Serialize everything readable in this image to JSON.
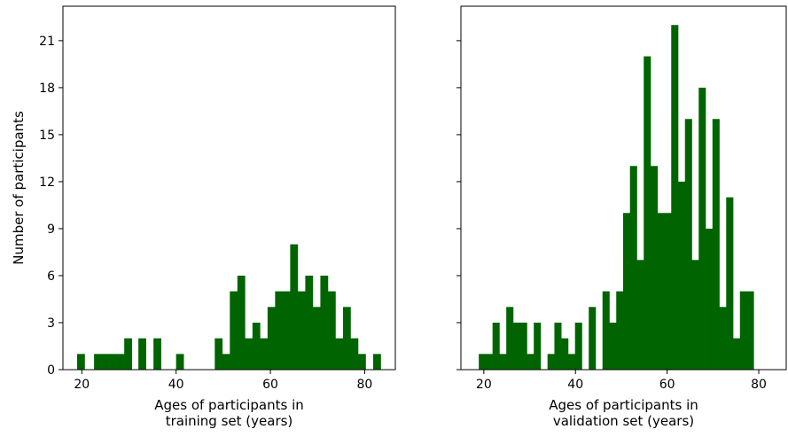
{
  "chart_data": [
    {
      "type": "bar",
      "title": "",
      "xlabel": [
        "Ages of participants in",
        "training set (years)"
      ],
      "ylabel": "Number of participants",
      "xlim": [
        16,
        86.5
      ],
      "ylim": [
        0,
        23.2
      ],
      "xticks": [
        20,
        40,
        60,
        80
      ],
      "yticks": [
        0,
        3,
        6,
        9,
        12,
        15,
        18,
        21
      ],
      "bar_color": "#006400",
      "bins": [
        {
          "x0": 19.0,
          "x1": 20.6,
          "value": 1
        },
        {
          "x0": 22.6,
          "x1": 24.2,
          "value": 1
        },
        {
          "x0": 24.2,
          "x1": 25.8,
          "value": 1
        },
        {
          "x0": 25.8,
          "x1": 27.4,
          "value": 1
        },
        {
          "x0": 27.4,
          "x1": 29.0,
          "value": 1
        },
        {
          "x0": 29.0,
          "x1": 30.6,
          "value": 2
        },
        {
          "x0": 32.0,
          "x1": 33.6,
          "value": 2
        },
        {
          "x0": 35.2,
          "x1": 36.8,
          "value": 2
        },
        {
          "x0": 40.0,
          "x1": 41.6,
          "value": 1
        },
        {
          "x0": 48.2,
          "x1": 49.8,
          "value": 2
        },
        {
          "x0": 49.8,
          "x1": 51.4,
          "value": 1
        },
        {
          "x0": 51.4,
          "x1": 53.0,
          "value": 5
        },
        {
          "x0": 53.0,
          "x1": 54.6,
          "value": 6
        },
        {
          "x0": 54.6,
          "x1": 56.2,
          "value": 2
        },
        {
          "x0": 56.2,
          "x1": 57.8,
          "value": 3
        },
        {
          "x0": 57.8,
          "x1": 59.4,
          "value": 2
        },
        {
          "x0": 59.4,
          "x1": 61.0,
          "value": 4
        },
        {
          "x0": 61.0,
          "x1": 62.6,
          "value": 5
        },
        {
          "x0": 62.6,
          "x1": 64.2,
          "value": 5
        },
        {
          "x0": 64.2,
          "x1": 65.8,
          "value": 8
        },
        {
          "x0": 65.8,
          "x1": 67.4,
          "value": 5
        },
        {
          "x0": 67.4,
          "x1": 69.0,
          "value": 6
        },
        {
          "x0": 69.0,
          "x1": 70.6,
          "value": 4
        },
        {
          "x0": 70.6,
          "x1": 72.2,
          "value": 6
        },
        {
          "x0": 72.2,
          "x1": 73.8,
          "value": 5
        },
        {
          "x0": 73.8,
          "x1": 75.4,
          "value": 2
        },
        {
          "x0": 75.4,
          "x1": 77.0,
          "value": 4
        },
        {
          "x0": 77.0,
          "x1": 78.6,
          "value": 2
        },
        {
          "x0": 78.6,
          "x1": 80.2,
          "value": 1
        },
        {
          "x0": 81.8,
          "x1": 83.4,
          "value": 1
        }
      ]
    },
    {
      "type": "bar",
      "title": "",
      "xlabel": [
        "Ages of participants in",
        "validation set (years)"
      ],
      "ylabel": "",
      "xlim": [
        15,
        86
      ],
      "ylim": [
        0,
        23.2
      ],
      "xticks": [
        20,
        40,
        60,
        80
      ],
      "yticks": [
        0,
        3,
        6,
        9,
        12,
        15,
        18,
        21
      ],
      "bar_color": "#006400",
      "bins": [
        {
          "x0": 18.9,
          "x1": 20.4,
          "value": 1
        },
        {
          "x0": 20.4,
          "x1": 21.9,
          "value": 1
        },
        {
          "x0": 21.9,
          "x1": 23.4,
          "value": 3
        },
        {
          "x0": 23.4,
          "x1": 24.9,
          "value": 1
        },
        {
          "x0": 24.9,
          "x1": 26.4,
          "value": 4
        },
        {
          "x0": 26.4,
          "x1": 27.9,
          "value": 3
        },
        {
          "x0": 27.9,
          "x1": 29.4,
          "value": 3
        },
        {
          "x0": 29.4,
          "x1": 30.9,
          "value": 1
        },
        {
          "x0": 30.9,
          "x1": 32.4,
          "value": 3
        },
        {
          "x0": 33.9,
          "x1": 35.4,
          "value": 1
        },
        {
          "x0": 35.4,
          "x1": 36.9,
          "value": 3
        },
        {
          "x0": 36.9,
          "x1": 38.4,
          "value": 2
        },
        {
          "x0": 38.4,
          "x1": 39.9,
          "value": 1
        },
        {
          "x0": 39.9,
          "x1": 41.4,
          "value": 3
        },
        {
          "x0": 42.9,
          "x1": 44.4,
          "value": 4
        },
        {
          "x0": 45.9,
          "x1": 47.4,
          "value": 5
        },
        {
          "x0": 47.4,
          "x1": 48.9,
          "value": 3
        },
        {
          "x0": 48.9,
          "x1": 50.4,
          "value": 5
        },
        {
          "x0": 50.4,
          "x1": 51.9,
          "value": 10
        },
        {
          "x0": 51.9,
          "x1": 53.4,
          "value": 13
        },
        {
          "x0": 53.4,
          "x1": 54.9,
          "value": 7
        },
        {
          "x0": 54.9,
          "x1": 56.4,
          "value": 20
        },
        {
          "x0": 56.4,
          "x1": 57.9,
          "value": 13
        },
        {
          "x0": 57.9,
          "x1": 59.4,
          "value": 10
        },
        {
          "x0": 59.4,
          "x1": 60.9,
          "value": 10
        },
        {
          "x0": 60.9,
          "x1": 62.4,
          "value": 22
        },
        {
          "x0": 62.4,
          "x1": 63.9,
          "value": 12
        },
        {
          "x0": 63.9,
          "x1": 65.4,
          "value": 16
        },
        {
          "x0": 65.4,
          "x1": 66.9,
          "value": 7
        },
        {
          "x0": 66.9,
          "x1": 68.4,
          "value": 18
        },
        {
          "x0": 68.4,
          "x1": 69.9,
          "value": 9
        },
        {
          "x0": 69.9,
          "x1": 71.4,
          "value": 16
        },
        {
          "x0": 71.4,
          "x1": 72.9,
          "value": 4
        },
        {
          "x0": 72.9,
          "x1": 74.4,
          "value": 11
        },
        {
          "x0": 74.4,
          "x1": 75.9,
          "value": 2
        },
        {
          "x0": 75.9,
          "x1": 77.4,
          "value": 5
        },
        {
          "x0": 77.4,
          "x1": 78.9,
          "value": 5
        }
      ]
    }
  ]
}
